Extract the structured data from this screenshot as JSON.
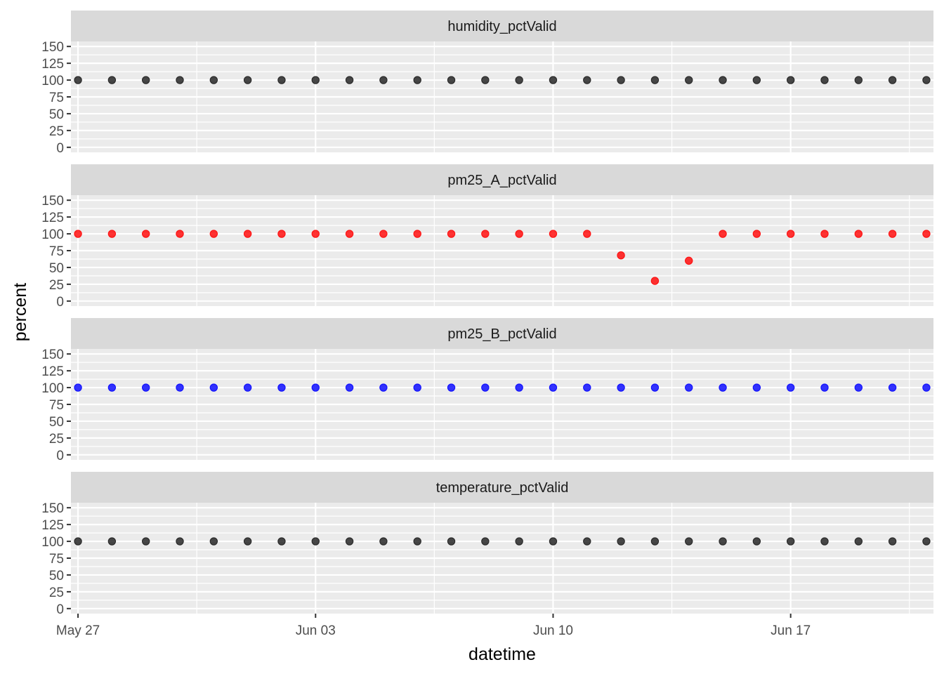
{
  "chart_data": {
    "type": "scatter",
    "xlabel": "datetime",
    "ylabel": "percent",
    "x_ticks": [
      "May 27",
      "Jun 03",
      "Jun 10",
      "Jun 17"
    ],
    "y_ticks": [
      0,
      25,
      50,
      75,
      100,
      125,
      150
    ],
    "ylim": [
      0,
      150
    ],
    "xlim": [
      "2023-05-26T19:00",
      "2023-06-21T05:00"
    ],
    "grid": true,
    "x": [
      "2023-05-27",
      "2023-05-28",
      "2023-05-29",
      "2023-05-30",
      "2023-05-31",
      "2023-06-01",
      "2023-06-02",
      "2023-06-03",
      "2023-06-04",
      "2023-06-05",
      "2023-06-06",
      "2023-06-07",
      "2023-06-08",
      "2023-06-09",
      "2023-06-10",
      "2023-06-11",
      "2023-06-12",
      "2023-06-13",
      "2023-06-14",
      "2023-06-15",
      "2023-06-16",
      "2023-06-17",
      "2023-06-18",
      "2023-06-19",
      "2023-06-20",
      "2023-06-21"
    ],
    "panels": [
      {
        "name": "humidity_pctValid",
        "color": "#1a1a1a",
        "values": [
          100,
          100,
          100,
          100,
          100,
          100,
          100,
          100,
          100,
          100,
          100,
          100,
          100,
          100,
          100,
          100,
          100,
          100,
          100,
          100,
          100,
          100,
          100,
          100,
          100,
          100
        ]
      },
      {
        "name": "pm25_A_pctValid",
        "color": "#ff0000",
        "values": [
          100,
          100,
          100,
          100,
          100,
          100,
          100,
          100,
          100,
          100,
          100,
          100,
          100,
          100,
          100,
          100,
          68,
          30,
          60,
          100,
          100,
          100,
          100,
          100,
          100,
          100
        ]
      },
      {
        "name": "pm25_B_pctValid",
        "color": "#0000ff",
        "values": [
          100,
          100,
          100,
          100,
          100,
          100,
          100,
          100,
          100,
          100,
          100,
          100,
          100,
          100,
          100,
          100,
          100,
          100,
          100,
          100,
          100,
          100,
          100,
          100,
          100,
          100
        ]
      },
      {
        "name": "temperature_pctValid",
        "color": "#1a1a1a",
        "values": [
          100,
          100,
          100,
          100,
          100,
          100,
          100,
          100,
          100,
          100,
          100,
          100,
          100,
          100,
          100,
          100,
          100,
          100,
          100,
          100,
          100,
          100,
          100,
          100,
          100,
          100
        ]
      }
    ]
  }
}
